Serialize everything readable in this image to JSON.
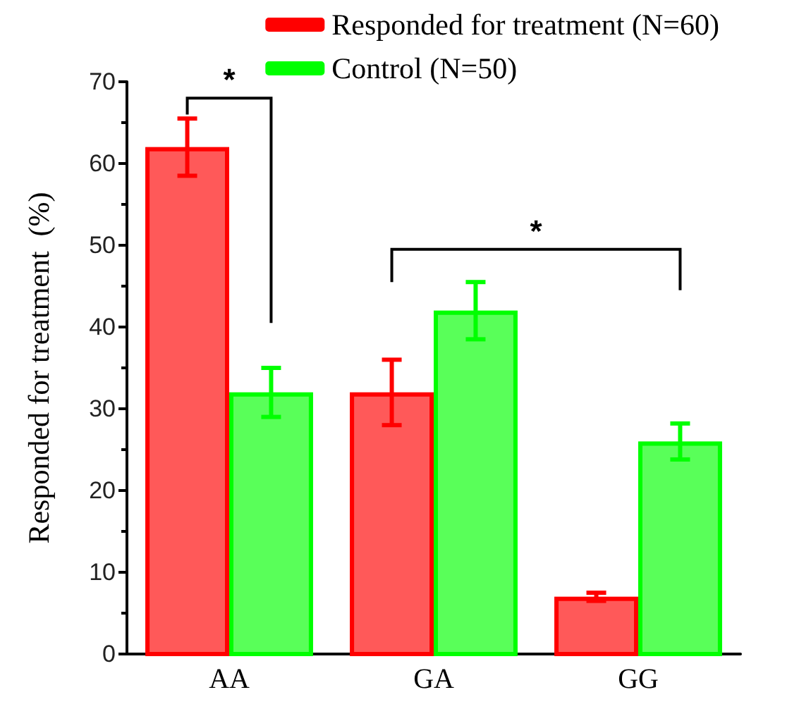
{
  "chart_data": {
    "type": "bar",
    "ylabel": "Responded for treatment  (%)",
    "categories": [
      "AA",
      "GA",
      "GG"
    ],
    "series": [
      {
        "name": "Responded for treatment (N=60)",
        "color": "#ff0000",
        "values": [
          62,
          32,
          7
        ],
        "errors": [
          3.5,
          4,
          0.5
        ]
      },
      {
        "name": "Control (N=50)",
        "color": "#00ff00",
        "values": [
          32,
          42,
          26
        ],
        "errors": [
          3,
          3.5,
          2.2
        ]
      }
    ],
    "ylim": [
      0,
      70
    ],
    "yticks": [
      0,
      10,
      20,
      30,
      40,
      50,
      60,
      70
    ],
    "grid": false,
    "legend": "top right",
    "annotations": [
      "*",
      "*"
    ]
  }
}
